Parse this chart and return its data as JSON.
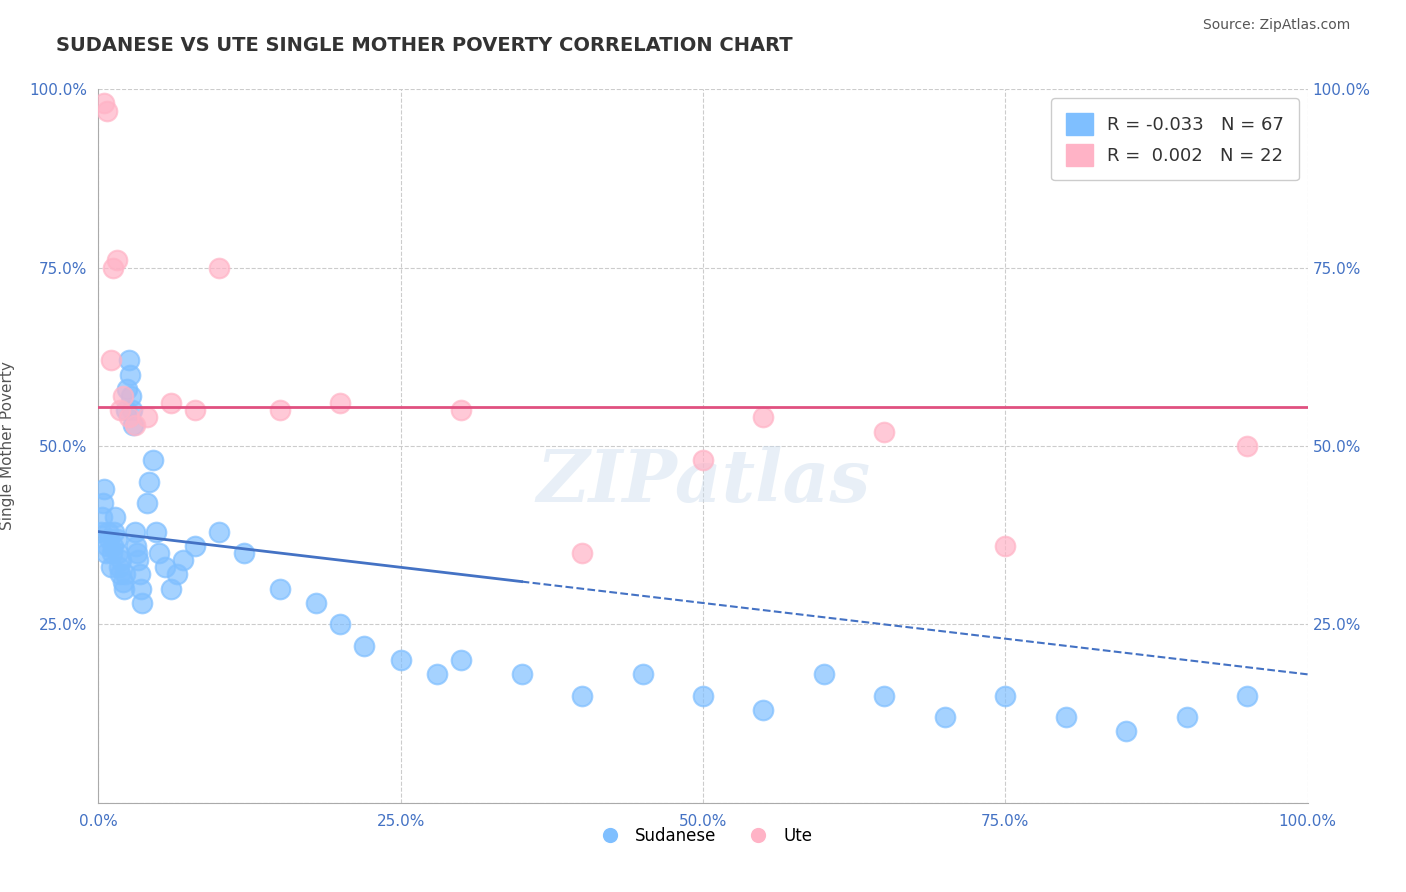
{
  "title": "SUDANESE VS UTE SINGLE MOTHER POVERTY CORRELATION CHART",
  "source": "Source: ZipAtlas.com",
  "xlabel": "",
  "ylabel": "Single Mother Poverty",
  "xlim": [
    0,
    1.0
  ],
  "ylim": [
    0,
    1.0
  ],
  "xticks": [
    0.0,
    0.25,
    0.5,
    0.75,
    1.0
  ],
  "yticks": [
    0.0,
    0.25,
    0.5,
    0.75,
    1.0
  ],
  "xticklabels": [
    "0.0%",
    "25.0%",
    "50.0%",
    "75.0%",
    "100.0%"
  ],
  "yticklabels": [
    "",
    "25.0%",
    "50.0%",
    "75.0%",
    "100.0%"
  ],
  "blue_color": "#7fbfff",
  "pink_color": "#ffb3c6",
  "blue_line_color": "#4472c4",
  "pink_line_color": "#e05080",
  "legend_R_blue": "R = -0.033",
  "legend_N_blue": "N = 67",
  "legend_R_pink": "R =  0.002",
  "legend_N_pink": "N = 22",
  "sudanese_label": "Sudanese",
  "ute_label": "Ute",
  "sudanese_x": [
    0.002,
    0.003,
    0.004,
    0.005,
    0.006,
    0.007,
    0.008,
    0.009,
    0.01,
    0.011,
    0.012,
    0.013,
    0.014,
    0.015,
    0.016,
    0.017,
    0.018,
    0.019,
    0.02,
    0.021,
    0.022,
    0.023,
    0.024,
    0.025,
    0.026,
    0.027,
    0.028,
    0.029,
    0.03,
    0.031,
    0.032,
    0.033,
    0.034,
    0.035,
    0.036,
    0.04,
    0.042,
    0.045,
    0.048,
    0.05,
    0.055,
    0.06,
    0.065,
    0.07,
    0.08,
    0.1,
    0.12,
    0.15,
    0.18,
    0.2,
    0.22,
    0.25,
    0.28,
    0.3,
    0.35,
    0.4,
    0.45,
    0.5,
    0.55,
    0.6,
    0.65,
    0.7,
    0.75,
    0.8,
    0.85,
    0.9,
    0.95
  ],
  "sudanese_y": [
    0.38,
    0.4,
    0.42,
    0.44,
    0.35,
    0.36,
    0.38,
    0.37,
    0.33,
    0.35,
    0.36,
    0.38,
    0.4,
    0.37,
    0.35,
    0.33,
    0.32,
    0.34,
    0.31,
    0.3,
    0.32,
    0.55,
    0.58,
    0.62,
    0.6,
    0.57,
    0.55,
    0.53,
    0.38,
    0.36,
    0.35,
    0.34,
    0.32,
    0.3,
    0.28,
    0.42,
    0.45,
    0.48,
    0.38,
    0.35,
    0.33,
    0.3,
    0.32,
    0.34,
    0.36,
    0.38,
    0.35,
    0.3,
    0.28,
    0.25,
    0.22,
    0.2,
    0.18,
    0.2,
    0.18,
    0.15,
    0.18,
    0.15,
    0.13,
    0.18,
    0.15,
    0.12,
    0.15,
    0.12,
    0.1,
    0.12,
    0.15
  ],
  "ute_x": [
    0.005,
    0.007,
    0.01,
    0.012,
    0.015,
    0.018,
    0.02,
    0.025,
    0.03,
    0.04,
    0.06,
    0.08,
    0.1,
    0.15,
    0.2,
    0.3,
    0.4,
    0.5,
    0.55,
    0.65,
    0.75,
    0.95
  ],
  "ute_y": [
    0.98,
    0.97,
    0.62,
    0.75,
    0.76,
    0.55,
    0.57,
    0.54,
    0.53,
    0.54,
    0.56,
    0.55,
    0.75,
    0.55,
    0.56,
    0.55,
    0.35,
    0.48,
    0.54,
    0.52,
    0.36,
    0.5
  ],
  "blue_trend_x0": 0.0,
  "blue_trend_y0": 0.38,
  "blue_trend_x1": 1.0,
  "blue_trend_y1": 0.18,
  "pink_trend_y": 0.555,
  "watermark_text": "ZIPatlas",
  "background_color": "#ffffff",
  "grid_color": "#cccccc",
  "title_color": "#333333",
  "axis_label_color": "#555555",
  "tick_label_color": "#4472c4"
}
